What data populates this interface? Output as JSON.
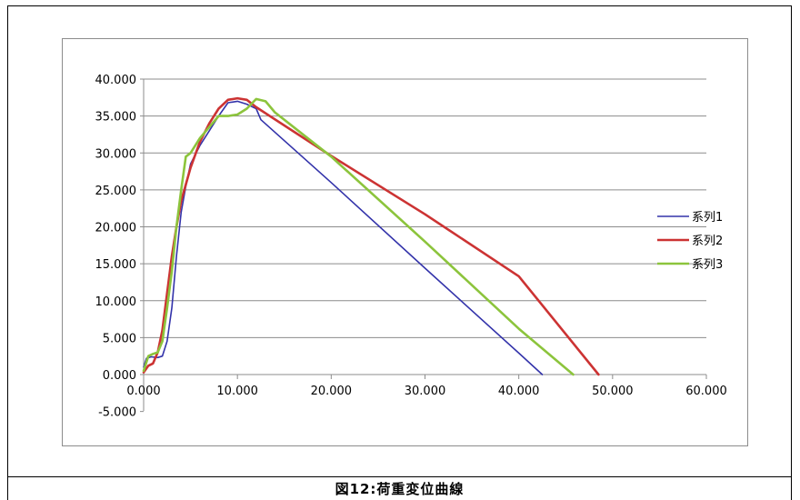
{
  "caption": "図12:荷重変位曲線",
  "chart_data": {
    "type": "line",
    "title": "",
    "xlabel": "",
    "ylabel": "",
    "xlim": [
      0,
      60
    ],
    "ylim": [
      -5,
      40
    ],
    "x_ticks": [
      0,
      10,
      20,
      30,
      40,
      50,
      60
    ],
    "y_ticks": [
      -5,
      0,
      5,
      10,
      15,
      20,
      25,
      30,
      35,
      40
    ],
    "x_tick_labels": [
      "0.000",
      "10.000",
      "20.000",
      "30.000",
      "40.000",
      "50.000",
      "60.000"
    ],
    "y_tick_labels": [
      "-5.000",
      "0.000",
      "5.000",
      "10.000",
      "15.000",
      "20.000",
      "25.000",
      "30.000",
      "35.000",
      "40.000"
    ],
    "grid": "horizontal",
    "legend_position": "right",
    "series": [
      {
        "name": "系列1",
        "color": "#3333aa",
        "points": [
          [
            0,
            1.0
          ],
          [
            0.3,
            2.2
          ],
          [
            0.8,
            2.4
          ],
          [
            1.5,
            2.3
          ],
          [
            2.0,
            2.5
          ],
          [
            2.5,
            4.5
          ],
          [
            3.0,
            9.0
          ],
          [
            3.5,
            16.0
          ],
          [
            4.0,
            22.0
          ],
          [
            4.5,
            25.5
          ],
          [
            5.0,
            28.5
          ],
          [
            6.0,
            31.0
          ],
          [
            7.0,
            33.0
          ],
          [
            8.0,
            35.0
          ],
          [
            9.0,
            36.8
          ],
          [
            10.0,
            37.0
          ],
          [
            11.0,
            36.6
          ],
          [
            12.0,
            36.0
          ],
          [
            12.5,
            34.5
          ],
          [
            20.0,
            26.0
          ],
          [
            30.0,
            14.4
          ],
          [
            40.0,
            2.9
          ],
          [
            42.5,
            0.0
          ]
        ]
      },
      {
        "name": "系列2",
        "color": "#cc3333",
        "points": [
          [
            0,
            0.3
          ],
          [
            0.5,
            1.2
          ],
          [
            1.0,
            1.5
          ],
          [
            1.5,
            3.0
          ],
          [
            2.0,
            6.0
          ],
          [
            2.5,
            11.0
          ],
          [
            3.0,
            16.0
          ],
          [
            3.5,
            20.0
          ],
          [
            4.0,
            23.5
          ],
          [
            5.0,
            28.0
          ],
          [
            6.0,
            31.5
          ],
          [
            7.0,
            34.0
          ],
          [
            8.0,
            36.0
          ],
          [
            9.0,
            37.2
          ],
          [
            10.0,
            37.4
          ],
          [
            11.0,
            37.2
          ],
          [
            12.0,
            36.2
          ],
          [
            20.0,
            29.6
          ],
          [
            30.0,
            21.7
          ],
          [
            40.0,
            13.3
          ],
          [
            48.5,
            0.0
          ]
        ]
      },
      {
        "name": "系列3",
        "color": "#8cc43c",
        "points": [
          [
            0,
            0.5
          ],
          [
            0.5,
            2.5
          ],
          [
            1.0,
            2.8
          ],
          [
            1.5,
            3.0
          ],
          [
            2.0,
            4.5
          ],
          [
            2.5,
            9.0
          ],
          [
            3.0,
            14.0
          ],
          [
            3.5,
            20.0
          ],
          [
            4.0,
            25.0
          ],
          [
            4.5,
            29.5
          ],
          [
            5.0,
            30.0
          ],
          [
            6.0,
            32.0
          ],
          [
            7.0,
            33.5
          ],
          [
            8.0,
            35.0
          ],
          [
            9.0,
            35.0
          ],
          [
            10.0,
            35.2
          ],
          [
            11.0,
            36.0
          ],
          [
            12.0,
            37.3
          ],
          [
            13.0,
            37.0
          ],
          [
            14.0,
            35.5
          ],
          [
            20.0,
            29.5
          ],
          [
            30.0,
            18.0
          ],
          [
            40.0,
            6.2
          ],
          [
            45.8,
            0.0
          ]
        ]
      }
    ]
  }
}
